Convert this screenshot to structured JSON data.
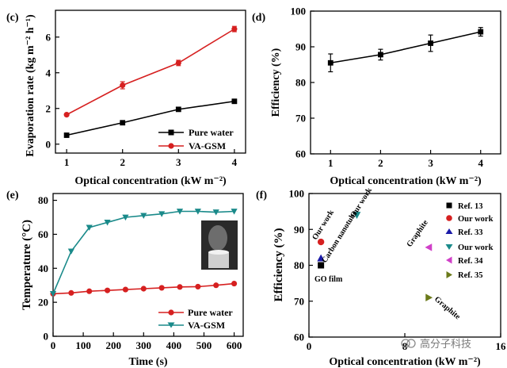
{
  "chart_data": [
    {
      "panel": "c",
      "panel_label": "(c)",
      "type": "line",
      "xlabel": "Optical concentration (kW m⁻²)",
      "ylabel": "Evaporation rate (kg m⁻² h⁻¹)",
      "xlim": [
        0.8,
        4.2
      ],
      "ylim": [
        -0.5,
        7.5
      ],
      "xticks": [
        1,
        2,
        3,
        4
      ],
      "yticks": [
        0,
        2,
        4,
        6
      ],
      "legend_position": "bottom-right",
      "series": [
        {
          "name": "Pure water",
          "color": "#000000",
          "marker": "square",
          "x": [
            1,
            2,
            3,
            4
          ],
          "values": [
            0.5,
            1.2,
            1.95,
            2.4
          ],
          "err": [
            0.05,
            0.05,
            0.06,
            0.12
          ]
        },
        {
          "name": "VA-GSM",
          "color": "#d62020",
          "marker": "circle",
          "x": [
            1,
            2,
            3,
            4
          ],
          "values": [
            1.65,
            3.3,
            4.55,
            6.45
          ],
          "err": [
            0.06,
            0.2,
            0.15,
            0.15
          ]
        }
      ]
    },
    {
      "panel": "d",
      "panel_label": "(d)",
      "type": "line",
      "xlabel": "Optical concentration (kW m⁻²)",
      "ylabel": "Efficiency (%)",
      "xlim": [
        0.6,
        4.4
      ],
      "ylim": [
        60,
        100
      ],
      "xticks": [
        1,
        2,
        3,
        4
      ],
      "yticks": [
        60,
        70,
        80,
        90,
        100
      ],
      "series": [
        {
          "name": "",
          "color": "#000000",
          "marker": "square",
          "x": [
            1,
            2,
            3,
            4
          ],
          "values": [
            85.5,
            87.8,
            91,
            94.2
          ],
          "err": [
            2.5,
            1.5,
            2.3,
            1.2
          ]
        }
      ]
    },
    {
      "panel": "e",
      "panel_label": "(e)",
      "type": "line",
      "xlabel": "Time (s)",
      "ylabel": "Temperature (°C)",
      "xlim": [
        0,
        630
      ],
      "ylim": [
        0,
        84
      ],
      "xticks": [
        0,
        100,
        200,
        300,
        400,
        500,
        600
      ],
      "yticks": [
        0,
        20,
        40,
        60,
        80
      ],
      "legend_position": "bottom-right",
      "series": [
        {
          "name": "Pure water",
          "color": "#d62020",
          "marker": "circle",
          "x": [
            0,
            60,
            120,
            180,
            240,
            300,
            360,
            420,
            480,
            540,
            600
          ],
          "values": [
            25,
            25.5,
            26.5,
            27,
            27.5,
            28,
            28.5,
            29,
            29.2,
            30,
            31
          ]
        },
        {
          "name": "VA-GSM",
          "color": "#1a8a8a",
          "marker": "triangle-down",
          "x": [
            0,
            60,
            120,
            180,
            240,
            300,
            360,
            420,
            480,
            540,
            600
          ],
          "values": [
            25,
            50,
            64,
            67,
            70,
            71,
            72,
            73.5,
            73.5,
            73,
            73.5
          ]
        }
      ]
    },
    {
      "panel": "f",
      "panel_label": "(f)",
      "type": "scatter",
      "xlabel": "Optical concentration (kW m⁻²)",
      "ylabel": "Efficiency (%)",
      "xlim": [
        0,
        16
      ],
      "ylim": [
        60,
        100
      ],
      "yticks": [
        60,
        70,
        80,
        90,
        100
      ],
      "xticks_visible": [
        0,
        8,
        16
      ],
      "xtick_labels": [
        "0",
        "8",
        "16"
      ],
      "legend_position": "right",
      "series": [
        {
          "name": "Ref. 13",
          "color": "#000000",
          "marker": "square",
          "x": [
            1
          ],
          "values": [
            80
          ]
        },
        {
          "name": "Our work",
          "color": "#d62020",
          "marker": "circle",
          "x": [
            1
          ],
          "values": [
            86.5
          ]
        },
        {
          "name": "Ref. 33",
          "color": "#1a1aa8",
          "marker": "triangle-up",
          "x": [
            1
          ],
          "values": [
            82
          ]
        },
        {
          "name": "Our work",
          "color": "#1a8a8a",
          "marker": "triangle-down",
          "x": [
            4
          ],
          "values": [
            94
          ]
        },
        {
          "name": "Ref. 34",
          "color": "#d040c8",
          "marker": "triangle-left",
          "x": [
            10
          ],
          "values": [
            85
          ]
        },
        {
          "name": "Ref. 35",
          "color": "#6b7a1a",
          "marker": "triangle-right",
          "x": [
            10
          ],
          "values": [
            71
          ]
        }
      ],
      "annotations": [
        "Our work",
        "Carbon nanotube",
        "GO film",
        "Our work",
        "Graphite",
        "Graphite"
      ]
    }
  ],
  "watermark": "高分子科技"
}
